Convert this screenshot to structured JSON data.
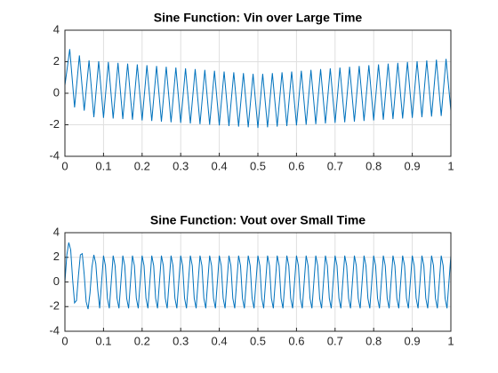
{
  "chart_data": [
    {
      "type": "line",
      "title": "Sine Function: Vin over Large Time",
      "x": [
        0,
        0.0125,
        0.025,
        0.0375,
        0.05,
        0.0625,
        0.075,
        0.0875,
        0.1,
        0.1125,
        0.125,
        0.1375,
        0.15,
        0.1625,
        0.175,
        0.1875,
        0.2,
        0.2125,
        0.225,
        0.2375,
        0.25,
        0.2625,
        0.275,
        0.2875,
        0.3,
        0.3125,
        0.325,
        0.3375,
        0.35,
        0.3625,
        0.375,
        0.3875,
        0.4,
        0.4125,
        0.425,
        0.4375,
        0.45,
        0.4625,
        0.475,
        0.4875,
        0.5,
        0.5125,
        0.525,
        0.5375,
        0.55,
        0.5625,
        0.575,
        0.5875,
        0.6,
        0.6125,
        0.625,
        0.6375,
        0.65,
        0.6625,
        0.675,
        0.6875,
        0.7,
        0.7125,
        0.725,
        0.7375,
        0.75,
        0.7625,
        0.775,
        0.7875,
        0.8,
        0.8125,
        0.825,
        0.8375,
        0.85,
        0.8625,
        0.875,
        0.8875,
        0.9,
        0.9125,
        0.925,
        0.9375,
        0.95,
        0.9625,
        0.975,
        0.9875,
        1
      ],
      "series": [
        {
          "color": "#0072bd",
          "values": [
            0.5,
            2.8,
            -0.9,
            2.4,
            -1.1,
            2.08,
            -1.52,
            2.03,
            -1.56,
            1.98,
            -1.6,
            1.93,
            -1.64,
            1.88,
            -1.68,
            1.83,
            -1.72,
            1.78,
            -1.76,
            1.73,
            -1.8,
            1.68,
            -1.84,
            1.63,
            -1.88,
            1.58,
            -1.92,
            1.53,
            -1.96,
            1.48,
            -2.0,
            1.43,
            -2.04,
            1.38,
            -2.08,
            1.33,
            -2.12,
            1.28,
            -2.16,
            1.23,
            -2.2,
            1.23,
            -2.16,
            1.28,
            -2.12,
            1.33,
            -2.08,
            1.38,
            -2.04,
            1.43,
            -2.0,
            1.48,
            -1.96,
            1.53,
            -1.92,
            1.58,
            -1.88,
            1.63,
            -1.84,
            1.68,
            -1.8,
            1.73,
            -1.76,
            1.78,
            -1.72,
            1.83,
            -1.68,
            1.88,
            -1.64,
            1.93,
            -1.6,
            1.98,
            -1.56,
            2.03,
            -1.52,
            2.08,
            -1.48,
            2.13,
            -1.44,
            2.18,
            -1.1
          ]
        }
      ],
      "xlim": [
        0,
        1
      ],
      "xticks": [
        0,
        0.1,
        0.2,
        0.3,
        0.4,
        0.5,
        0.6,
        0.7,
        0.8,
        0.9,
        1
      ],
      "ylim": [
        -4,
        4
      ],
      "yticks": [
        -4,
        -2,
        0,
        2,
        4
      ],
      "grid": true
    },
    {
      "type": "line",
      "title": "Sine Function: Vout over Small Time",
      "x": [
        0,
        0.005,
        0.01,
        0.015,
        0.02,
        0.025,
        0.03,
        0.035,
        0.04,
        0.045,
        0.05,
        0.055,
        0.06,
        0.065,
        0.07,
        0.075,
        0.08,
        0.085,
        0.09,
        0.095,
        0.1,
        0.105,
        0.11,
        0.115,
        0.12,
        0.125,
        0.13,
        0.135,
        0.14,
        0.145,
        0.15,
        0.155,
        0.16,
        0.165,
        0.17,
        0.175,
        0.18,
        0.185,
        0.19,
        0.195,
        0.2,
        0.205,
        0.21,
        0.215,
        0.22,
        0.225,
        0.23,
        0.235,
        0.24,
        0.245,
        0.25,
        0.255,
        0.26,
        0.265,
        0.27,
        0.275,
        0.28,
        0.285,
        0.29,
        0.295,
        0.3,
        0.305,
        0.31,
        0.315,
        0.32,
        0.325,
        0.33,
        0.335,
        0.34,
        0.345,
        0.35,
        0.355,
        0.36,
        0.365,
        0.37,
        0.375,
        0.38,
        0.385,
        0.39,
        0.395,
        0.4,
        0.405,
        0.41,
        0.415,
        0.42,
        0.425,
        0.43,
        0.435,
        0.44,
        0.445,
        0.45,
        0.455,
        0.46,
        0.465,
        0.47,
        0.475,
        0.48,
        0.485,
        0.49,
        0.495,
        0.5,
        0.505,
        0.51,
        0.515,
        0.52,
        0.525,
        0.53,
        0.535,
        0.54,
        0.545,
        0.55,
        0.555,
        0.56,
        0.565,
        0.57,
        0.575,
        0.58,
        0.585,
        0.59,
        0.595,
        0.6,
        0.605,
        0.61,
        0.615,
        0.62,
        0.625,
        0.63,
        0.635,
        0.64,
        0.645,
        0.65,
        0.655,
        0.66,
        0.665,
        0.67,
        0.675,
        0.68,
        0.685,
        0.69,
        0.695,
        0.7,
        0.705,
        0.71,
        0.715,
        0.72,
        0.725,
        0.73,
        0.735,
        0.74,
        0.745,
        0.75,
        0.755,
        0.76,
        0.765,
        0.77,
        0.775,
        0.78,
        0.785,
        0.79,
        0.795,
        0.8,
        0.805,
        0.81,
        0.815,
        0.82,
        0.825,
        0.83,
        0.835,
        0.84,
        0.845,
        0.85,
        0.855,
        0.86,
        0.865,
        0.87,
        0.875,
        0.88,
        0.885,
        0.89,
        0.895,
        0.9,
        0.905,
        0.91,
        0.915,
        0.92,
        0.925,
        0.93,
        0.935,
        0.94,
        0.945,
        0.95,
        0.955,
        0.96,
        0.965,
        0.97,
        0.975,
        0.98,
        0.985,
        0.99,
        0.995,
        1
      ],
      "series": [
        {
          "color": "#0072bd",
          "values": [
            0,
            2.2,
            3.2,
            2.6,
            0.2,
            -1.7,
            -1.5,
            0.5,
            2.2,
            2.3,
            0.6,
            -1.6,
            -2.2,
            -0.9,
            1.2,
            2.2,
            1.5,
            -0.6,
            -2.14,
            0,
            2.14,
            1.32,
            -1.32,
            -2.14,
            0,
            2.14,
            1.32,
            -1.32,
            -2.14,
            0,
            2.14,
            1.32,
            -1.32,
            -2.14,
            0,
            2.14,
            1.32,
            -1.32,
            -2.14,
            0,
            2.14,
            1.32,
            -1.32,
            -2.14,
            0,
            2.14,
            1.32,
            -1.32,
            -2.14,
            0,
            2.14,
            1.32,
            -1.32,
            -2.14,
            0,
            2.14,
            1.32,
            -1.32,
            -2.14,
            0,
            2.14,
            1.32,
            -1.32,
            -2.14,
            0,
            2.14,
            1.32,
            -1.32,
            -2.14,
            0,
            2.14,
            1.32,
            -1.32,
            -2.14,
            0,
            2.14,
            1.32,
            -1.32,
            -2.14,
            0,
            2.14,
            1.32,
            -1.32,
            -2.14,
            0,
            2.14,
            1.32,
            -1.32,
            -2.14,
            0,
            2.14,
            1.32,
            -1.32,
            -2.14,
            0,
            2.14,
            1.32,
            -1.32,
            -2.14,
            0,
            2.14,
            1.32,
            -1.32,
            -2.14,
            0,
            2.14,
            1.32,
            -1.32,
            -2.14,
            0,
            2.14,
            1.32,
            -1.32,
            -2.14,
            0,
            2.14,
            1.32,
            -1.32,
            -2.14,
            0,
            2.14,
            1.32,
            -1.32,
            -2.14,
            0,
            2.14,
            1.32,
            -1.32,
            -2.14,
            0,
            2.14,
            1.32,
            -1.32,
            -2.14,
            0,
            2.14,
            1.32,
            -1.32,
            -2.14,
            0,
            2.14,
            1.32,
            -1.32,
            -2.14,
            0,
            2.14,
            1.32,
            -1.32,
            -2.14,
            0,
            2.14,
            1.32,
            -1.32,
            -2.14,
            0,
            2.14,
            1.32,
            -1.32,
            -2.14,
            0,
            2.14,
            1.32,
            -1.32,
            -2.14,
            0,
            2.14,
            1.32,
            -1.32,
            -2.14,
            0,
            2.14,
            1.32,
            -1.32,
            -2.14,
            0,
            2.14,
            1.32,
            -1.32,
            -2.14,
            0,
            2.14,
            1.32,
            -1.32,
            -2.14,
            0,
            2.14,
            1.32,
            -1.32,
            -2.14,
            0,
            2.14,
            1.32,
            -1.32,
            -2.14,
            0,
            2.14,
            1.32,
            -1.32,
            -2.14,
            0,
            2.14
          ]
        }
      ],
      "xlim": [
        0,
        1
      ],
      "xticks": [
        0,
        0.1,
        0.2,
        0.3,
        0.4,
        0.5,
        0.6,
        0.7,
        0.8,
        0.9,
        1
      ],
      "ylim": [
        -4,
        4
      ],
      "yticks": [
        -4,
        -2,
        0,
        2,
        4
      ],
      "grid": true
    }
  ]
}
